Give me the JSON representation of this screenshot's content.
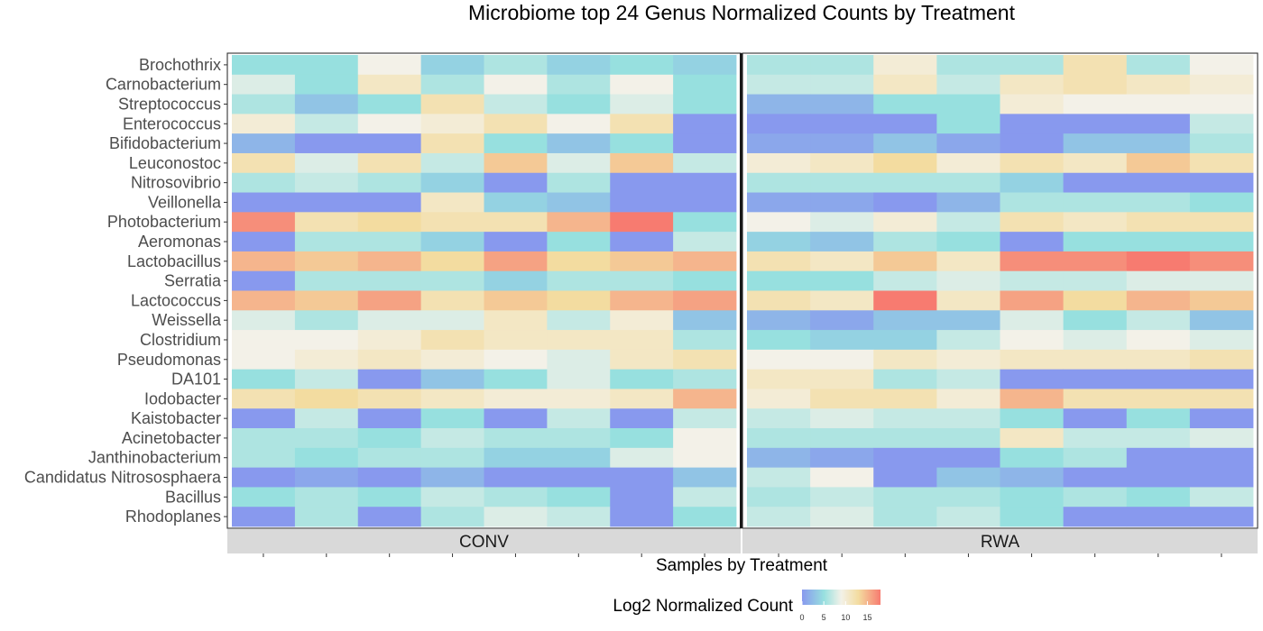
{
  "chart_data": {
    "type": "heatmap",
    "title": "Microbiome top 24 Genus Normalized Counts by Treatment",
    "xlabel": "Samples by Treatment",
    "ylabel": "",
    "facets": [
      "CONV",
      "RWA"
    ],
    "samples_per_facet": 8,
    "genera": [
      "Brochothrix",
      "Carnobacterium",
      "Streptococcus",
      "Enterococcus",
      "Bifidobacterium",
      "Leuconostoc",
      "Nitrosovibrio",
      "Veillonella",
      "Photobacterium",
      "Aeromonas",
      "Lactobacillus",
      "Serratia",
      "Lactococcus",
      "Weissella",
      "Clostridium",
      "Pseudomonas",
      "DA101",
      "Iodobacter",
      "Kaistobacter",
      "Acinetobacter",
      "Janthinobacterium",
      "Candidatus Nitrososphaera",
      "Bacillus",
      "Rhodoplanes"
    ],
    "values": {
      "CONV": [
        [
          5,
          5,
          9,
          4,
          6,
          4,
          5,
          4
        ],
        [
          8,
          5,
          11,
          6,
          9,
          6,
          9,
          5
        ],
        [
          6,
          3,
          5,
          12,
          7,
          5,
          8,
          5
        ],
        [
          10,
          7,
          9,
          10,
          12,
          9,
          12,
          0
        ],
        [
          2,
          0,
          0,
          12,
          5,
          3,
          5,
          0
        ],
        [
          12,
          8,
          12,
          7,
          14,
          8,
          14,
          7
        ],
        [
          6,
          7,
          6,
          4,
          0,
          6,
          0,
          0
        ],
        [
          0,
          0,
          0,
          11,
          4,
          3,
          0,
          0
        ],
        [
          17,
          12,
          13,
          12,
          12,
          15,
          18,
          5
        ],
        [
          0,
          6,
          6,
          4,
          0,
          5,
          0,
          7
        ],
        [
          15,
          14,
          15,
          13,
          16,
          13,
          14,
          15
        ],
        [
          0,
          6,
          6,
          6,
          4,
          6,
          6,
          5
        ],
        [
          15,
          14,
          16,
          12,
          14,
          13,
          15,
          16
        ],
        [
          8,
          6,
          8,
          8,
          11,
          7,
          10,
          3
        ],
        [
          9,
          9,
          10,
          12,
          11,
          11,
          11,
          6
        ],
        [
          9,
          10,
          11,
          10,
          9,
          8,
          11,
          12
        ],
        [
          5,
          7,
          0,
          3,
          5,
          8,
          5,
          6
        ],
        [
          12,
          13,
          12,
          11,
          10,
          10,
          11,
          15
        ],
        [
          0,
          7,
          0,
          5,
          0,
          7,
          0,
          7
        ],
        [
          6,
          6,
          5,
          7,
          6,
          6,
          5,
          9
        ],
        [
          6,
          5,
          6,
          6,
          4,
          4,
          8,
          9
        ],
        [
          0,
          1,
          0,
          2,
          0,
          0,
          0,
          3
        ],
        [
          5,
          6,
          5,
          7,
          6,
          5,
          0,
          7
        ],
        [
          0,
          6,
          0,
          6,
          8,
          7,
          0,
          5
        ]
      ],
      "RWA": [
        [
          6,
          6,
          10,
          6,
          6,
          12,
          6,
          9
        ],
        [
          7,
          7,
          11,
          7,
          11,
          12,
          11,
          10
        ],
        [
          2,
          2,
          5,
          5,
          10,
          9,
          9,
          9
        ],
        [
          0,
          0,
          0,
          5,
          0,
          0,
          0,
          7
        ],
        [
          1,
          1,
          3,
          1,
          0,
          3,
          3,
          6
        ],
        [
          10,
          11,
          13,
          10,
          12,
          11,
          14,
          12
        ],
        [
          6,
          6,
          6,
          6,
          4,
          0,
          0,
          0
        ],
        [
          1,
          1,
          0,
          2,
          6,
          6,
          6,
          5
        ],
        [
          9,
          8,
          10,
          7,
          12,
          11,
          12,
          12
        ],
        [
          4,
          3,
          6,
          5,
          0,
          5,
          5,
          5
        ],
        [
          12,
          11,
          14,
          11,
          17,
          17,
          18,
          17
        ],
        [
          5,
          5,
          7,
          8,
          7,
          7,
          8,
          8
        ],
        [
          12,
          11,
          18,
          11,
          16,
          13,
          15,
          14
        ],
        [
          2,
          1,
          3,
          3,
          8,
          5,
          7,
          3
        ],
        [
          5,
          4,
          4,
          7,
          9,
          8,
          9,
          8
        ],
        [
          9,
          9,
          11,
          10,
          11,
          11,
          11,
          12
        ],
        [
          11,
          11,
          6,
          7,
          0,
          0,
          0,
          0
        ],
        [
          10,
          12,
          12,
          10,
          15,
          12,
          12,
          12
        ],
        [
          7,
          8,
          7,
          7,
          5,
          0,
          5,
          0
        ],
        [
          6,
          6,
          6,
          6,
          11,
          7,
          7,
          8
        ],
        [
          2,
          1,
          0,
          0,
          5,
          6,
          0,
          0
        ],
        [
          7,
          9,
          0,
          3,
          2,
          0,
          0,
          0
        ],
        [
          6,
          7,
          6,
          6,
          5,
          6,
          5,
          7
        ],
        [
          7,
          8,
          6,
          7,
          5,
          0,
          0,
          0
        ]
      ]
    },
    "legend": {
      "title": "Log2 Normalized Count",
      "ticks": [
        0,
        5,
        10,
        15
      ],
      "range": [
        0,
        18
      ],
      "placement": "bottom",
      "colors": [
        "#8899ee",
        "#97e0df",
        "#f3f1e8",
        "#f3dca0",
        "#f77b70"
      ]
    },
    "grid": false
  }
}
